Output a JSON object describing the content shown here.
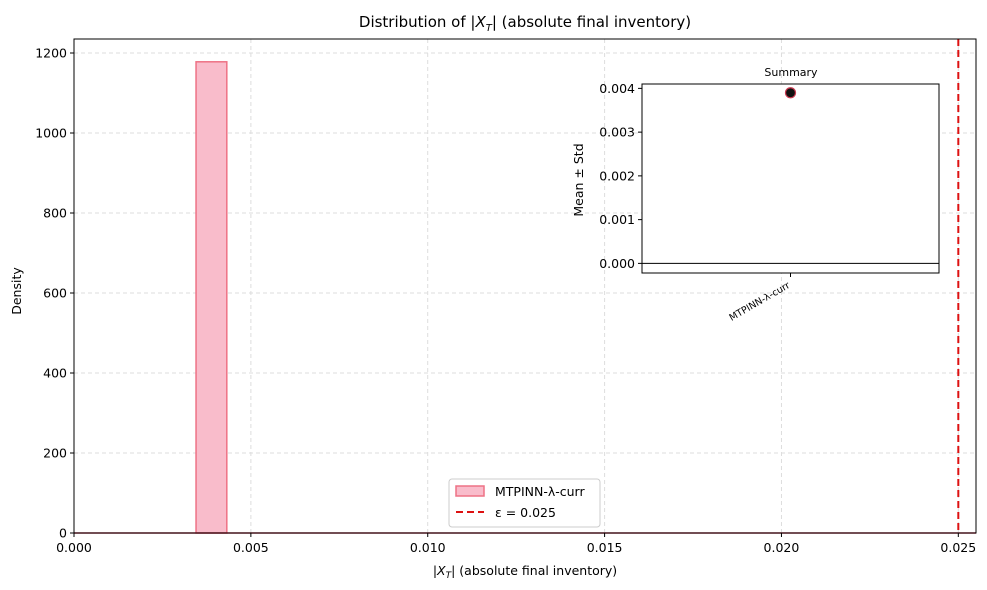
{
  "chart_data": [
    {
      "type": "bar",
      "title_pre": "Distribution of |",
      "title_sym": "X",
      "title_sub": "T",
      "title_post": "| (absolute final inventory)",
      "xlabel_pre": "|",
      "xlabel_sym": "X",
      "xlabel_sub": "T",
      "xlabel_post": "|  (absolute final inventory)",
      "ylabel": "Density",
      "xlim": [
        0,
        0.0255
      ],
      "ylim": [
        0,
        1235
      ],
      "xticks": [
        0,
        0.005,
        0.01,
        0.015,
        0.02,
        0.025
      ],
      "xtick_labels": [
        "0.000",
        "0.005",
        "0.010",
        "0.015",
        "0.020",
        "0.025"
      ],
      "yticks": [
        0,
        200,
        400,
        600,
        800,
        1000,
        1200
      ],
      "ytick_labels": [
        "0",
        "200",
        "400",
        "600",
        "800",
        "1000",
        "1200"
      ],
      "grid": true,
      "series": [
        {
          "name": "MTPINN-λ-curr",
          "bins": [
            {
              "x0": 0.00345,
              "x1": 0.00432,
              "density": 1178
            }
          ],
          "fill": "#f9bccb",
          "stroke": "#ee7285"
        }
      ],
      "reference_line": {
        "name": "ε = 0.025",
        "x": 0.025,
        "color": "#dd1111",
        "style": "dashed"
      },
      "legend_position": "lower-center"
    },
    {
      "type": "scatter",
      "title": "Summary",
      "ylabel": "Mean ± Std",
      "categories": [
        "MTPINN-λ-curr"
      ],
      "values": [
        0.0039
      ],
      "errors": [
        2e-05
      ],
      "ylim": [
        -0.00022,
        0.0041
      ],
      "yticks": [
        0,
        0.001,
        0.002,
        0.003,
        0.004
      ],
      "ytick_labels": [
        "0.000",
        "0.001",
        "0.002",
        "0.003",
        "0.004"
      ],
      "marker_color": "#111111",
      "marker_edge": "#c83a50",
      "hline": 0
    }
  ]
}
